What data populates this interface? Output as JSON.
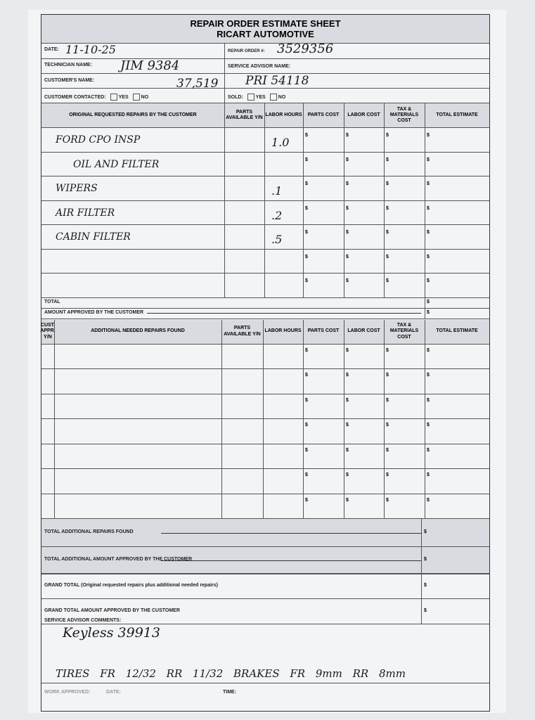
{
  "title": "REPAIR ORDER ESTIMATE SHEET",
  "subtitle": "RICART AUTOMOTIVE",
  "fields": {
    "date_label": "DATE:",
    "date_value": "11-10-25",
    "ro_label": "REPAIR ORDER #:",
    "ro_value": "3529356",
    "tech_label": "TECHNICIAN NAME:",
    "tech_value": "JIM 9384",
    "advisor_label": "SERVICE ADVISOR NAME:",
    "customer_label": "CUSTOMER'S NAME:",
    "customer_value": "37,519",
    "customer_value2": "PRI 54118",
    "contacted_label": "CUSTOMER CONTACTED:",
    "yes": "YES",
    "no": "NO",
    "sold_label": "SOLD:"
  },
  "table1": {
    "headers": [
      "ORIGINAL REQUESTED REPAIRS BY THE CUSTOMER",
      "PARTS AVAILABLE Y/N",
      "LABOR HOURS",
      "PARTS COST",
      "LABOR COST",
      "TAX & MATERIALS COST",
      "TOTAL ESTIMATE"
    ],
    "rows": [
      {
        "desc": "FORD CPO INSP",
        "hours": "1.0"
      },
      {
        "desc": "OIL AND FILTER",
        "hours": ""
      },
      {
        "desc": "WIPERS",
        "hours": ".1"
      },
      {
        "desc": "AIR FILTER",
        "hours": ".2"
      },
      {
        "desc": "CABIN FILTER",
        "hours": ".5"
      },
      {
        "desc": "",
        "hours": ""
      },
      {
        "desc": "",
        "hours": ""
      }
    ],
    "total_label": "TOTAL",
    "approved_label": "AMOUNT APPROVED BY THE CUSTOMER"
  },
  "table2": {
    "headers": [
      "CUST. APPR. Y/N",
      "ADDITIONAL NEEDED REPAIRS FOUND",
      "PARTS AVAILABLE Y/N",
      "LABOR HOURS",
      "PARTS COST",
      "LABOR COST",
      "TAX & MATERIALS COST",
      "TOTAL ESTIMATE"
    ],
    "row_count": 7
  },
  "currency": "$",
  "summary": {
    "total_additional": "TOTAL ADDITIONAL REPAIRS FOUND",
    "total_additional_approved": "TOTAL ADDITIONAL AMOUNT APPROVED BY THE CUSTOMER",
    "grand_total": "GRAND TOTAL (Original requested repairs plus additional needed repairs)",
    "grand_total_approved": "GRAND TOTAL AMOUNT APPROVED BY THE CUSTOMER"
  },
  "comments": {
    "label": "SERVICE ADVISOR COMMENTS:",
    "line1": "Keyless 39913",
    "line2": "TIRES FR 12/32   RR 11/32  BRAKES FR  9mm   RR 8mm"
  },
  "footer": {
    "work_approved": "WORK APPROVED:",
    "date": "DATE:",
    "time": "TIME:"
  }
}
